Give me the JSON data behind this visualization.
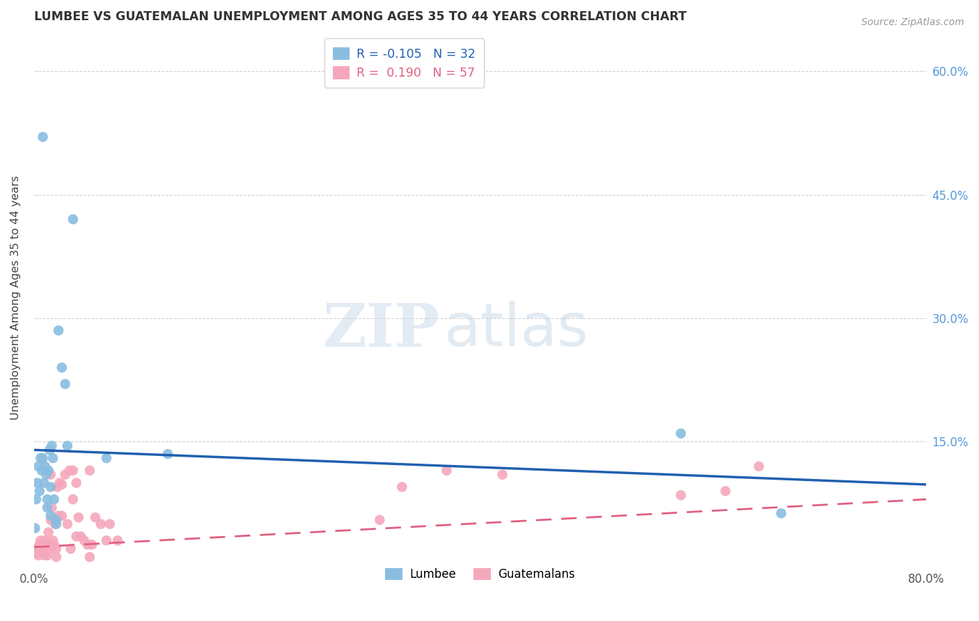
{
  "title": "LUMBEE VS GUATEMALAN UNEMPLOYMENT AMONG AGES 35 TO 44 YEARS CORRELATION CHART",
  "source": "Source: ZipAtlas.com",
  "ylabel": "Unemployment Among Ages 35 to 44 years",
  "xlim": [
    0.0,
    0.8
  ],
  "ylim": [
    0.0,
    0.65
  ],
  "lumbee_color": "#89bde0",
  "guatemalan_color": "#f5a8bc",
  "lumbee_line_color": "#2060b0",
  "guatemalan_line_color": "#e06080",
  "lumbee_R": -0.105,
  "lumbee_N": 32,
  "guatemalan_R": 0.19,
  "guatemalan_N": 57,
  "lumbee_line_y0": 0.14,
  "lumbee_line_y1": 0.098,
  "guatemalan_line_y0": 0.022,
  "guatemalan_line_y1": 0.08,
  "lumbee_x": [
    0.001,
    0.002,
    0.003,
    0.004,
    0.005,
    0.006,
    0.007,
    0.008,
    0.009,
    0.01,
    0.011,
    0.012,
    0.013,
    0.014,
    0.015,
    0.016,
    0.017,
    0.018,
    0.02,
    0.022,
    0.025,
    0.028,
    0.03,
    0.035,
    0.065,
    0.12,
    0.58,
    0.67,
    0.008,
    0.012,
    0.015,
    0.02
  ],
  "lumbee_y": [
    0.045,
    0.08,
    0.1,
    0.12,
    0.09,
    0.13,
    0.115,
    0.13,
    0.1,
    0.12,
    0.11,
    0.08,
    0.115,
    0.14,
    0.095,
    0.145,
    0.13,
    0.08,
    0.05,
    0.285,
    0.24,
    0.22,
    0.145,
    0.42,
    0.13,
    0.135,
    0.16,
    0.063,
    0.52,
    0.07,
    0.06,
    0.055
  ],
  "guatemalan_x": [
    0.001,
    0.002,
    0.003,
    0.004,
    0.005,
    0.006,
    0.007,
    0.008,
    0.009,
    0.01,
    0.01,
    0.011,
    0.012,
    0.013,
    0.014,
    0.015,
    0.015,
    0.016,
    0.017,
    0.018,
    0.019,
    0.02,
    0.021,
    0.022,
    0.023,
    0.025,
    0.028,
    0.03,
    0.032,
    0.033,
    0.035,
    0.038,
    0.04,
    0.042,
    0.045,
    0.048,
    0.05,
    0.052,
    0.055,
    0.06,
    0.065,
    0.068,
    0.075,
    0.31,
    0.33,
    0.37,
    0.42,
    0.58,
    0.62,
    0.65,
    0.012,
    0.015,
    0.02,
    0.025,
    0.035,
    0.038,
    0.05
  ],
  "guatemalan_y": [
    0.015,
    0.02,
    0.015,
    0.012,
    0.025,
    0.03,
    0.018,
    0.018,
    0.012,
    0.015,
    0.03,
    0.025,
    0.02,
    0.04,
    0.025,
    0.055,
    0.11,
    0.07,
    0.03,
    0.025,
    0.05,
    0.01,
    0.095,
    0.06,
    0.1,
    0.098,
    0.11,
    0.05,
    0.115,
    0.02,
    0.08,
    0.1,
    0.058,
    0.035,
    0.03,
    0.025,
    0.115,
    0.025,
    0.058,
    0.05,
    0.03,
    0.05,
    0.03,
    0.055,
    0.095,
    0.115,
    0.11,
    0.085,
    0.09,
    0.12,
    0.012,
    0.02,
    0.02,
    0.06,
    0.115,
    0.035,
    0.01
  ]
}
